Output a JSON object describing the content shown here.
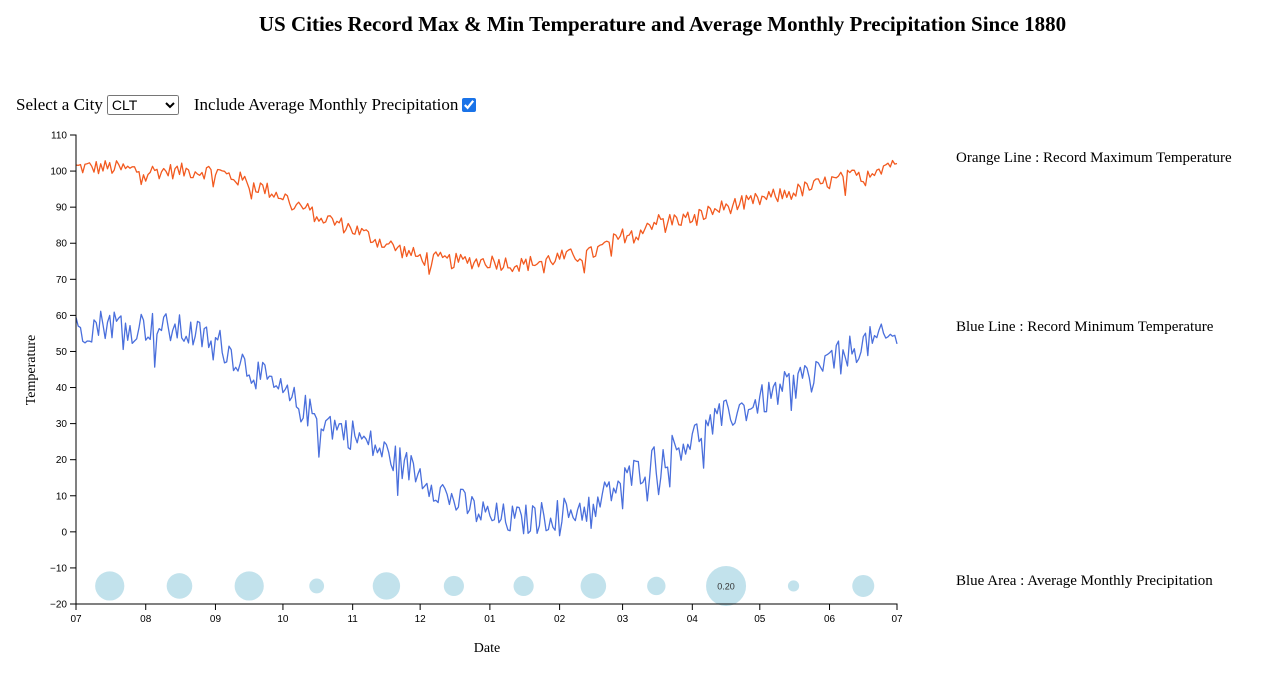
{
  "title": "US Cities Record Max & Min Temperature and Average Monthly Precipitation Since 1880",
  "controls": {
    "select_label": "Select a City",
    "city_selected": "CLT",
    "include_label": "Include Average Monthly Precipitation",
    "include_checked": true
  },
  "legend": {
    "orange": "Orange Line : Record Maximum Temperature",
    "blue": "Blue Line : Record Minimum Temperature",
    "area": "Blue Area : Average Monthly Precipitation"
  },
  "colors": {
    "max_line": "#f25a20",
    "min_line": "#4a6fdc",
    "precip_fill": "#add8e6"
  },
  "chart_data": {
    "type": "line",
    "title": "US Cities Record Max & Min Temperature and Average Monthly Precipitation Since 1880",
    "xlabel": "Date",
    "ylabel": "Temperature",
    "ylim": [
      -20,
      110
    ],
    "y_ticks": [
      -20,
      -10,
      0,
      10,
      20,
      30,
      40,
      50,
      60,
      70,
      80,
      90,
      100,
      110
    ],
    "x_tick_labels": [
      "07",
      "08",
      "09",
      "10",
      "11",
      "12",
      "01",
      "02",
      "03",
      "04",
      "05",
      "06",
      "07"
    ],
    "xlim": [
      "2014-07-01",
      "2015-07-01"
    ],
    "series": [
      {
        "name": "Record Maximum Temperature",
        "color": "#f25a20",
        "anchors": [
          [
            "2014-07-01",
            101
          ],
          [
            "2014-07-15",
            101
          ],
          [
            "2014-08-01",
            100
          ],
          [
            "2014-08-15",
            100
          ],
          [
            "2014-09-01",
            100
          ],
          [
            "2014-09-15",
            97
          ],
          [
            "2014-10-01",
            93
          ],
          [
            "2014-10-15",
            88
          ],
          [
            "2014-11-01",
            84
          ],
          [
            "2014-11-15",
            80
          ],
          [
            "2014-12-01",
            76
          ],
          [
            "2014-12-15",
            75
          ],
          [
            "2015-01-01",
            75
          ],
          [
            "2015-01-15",
            74
          ],
          [
            "2015-02-01",
            76
          ],
          [
            "2015-02-15",
            77
          ],
          [
            "2015-03-01",
            82
          ],
          [
            "2015-03-15",
            86
          ],
          [
            "2015-04-01",
            87
          ],
          [
            "2015-04-15",
            90
          ],
          [
            "2015-05-01",
            92
          ],
          [
            "2015-05-15",
            94
          ],
          [
            "2015-06-01",
            97
          ],
          [
            "2015-06-15",
            99
          ],
          [
            "2015-07-01",
            103
          ]
        ],
        "noise": 2.2
      },
      {
        "name": "Record Minimum Temperature",
        "color": "#4a6fdc",
        "anchors": [
          [
            "2014-07-01",
            56
          ],
          [
            "2014-07-15",
            58
          ],
          [
            "2014-08-01",
            57
          ],
          [
            "2014-08-15",
            56
          ],
          [
            "2014-09-01",
            53
          ],
          [
            "2014-09-15",
            46
          ],
          [
            "2014-10-01",
            38
          ],
          [
            "2014-10-15",
            32
          ],
          [
            "2014-11-01",
            27
          ],
          [
            "2014-11-15",
            22
          ],
          [
            "2014-12-01",
            16
          ],
          [
            "2014-12-15",
            9
          ],
          [
            "2015-01-01",
            4
          ],
          [
            "2015-01-15",
            3
          ],
          [
            "2015-02-01",
            5
          ],
          [
            "2015-02-15",
            7
          ],
          [
            "2015-03-01",
            14
          ],
          [
            "2015-03-15",
            20
          ],
          [
            "2015-04-01",
            26
          ],
          [
            "2015-04-15",
            32
          ],
          [
            "2015-05-01",
            36
          ],
          [
            "2015-05-15",
            41
          ],
          [
            "2015-06-01",
            47
          ],
          [
            "2015-06-15",
            52
          ],
          [
            "2015-07-01",
            54
          ]
        ],
        "noise": 4.5
      }
    ],
    "precipitation": {
      "name": "Average Monthly Precipitation",
      "label_shown": "0.20",
      "label_month_index": 9,
      "months": [
        "07",
        "08",
        "09",
        "10",
        "11",
        "12",
        "01",
        "02",
        "03",
        "04",
        "05",
        "06"
      ],
      "values": [
        0.14,
        0.12,
        0.14,
        0.06,
        0.13,
        0.09,
        0.09,
        0.12,
        0.08,
        0.2,
        0.04,
        0.1
      ]
    }
  }
}
